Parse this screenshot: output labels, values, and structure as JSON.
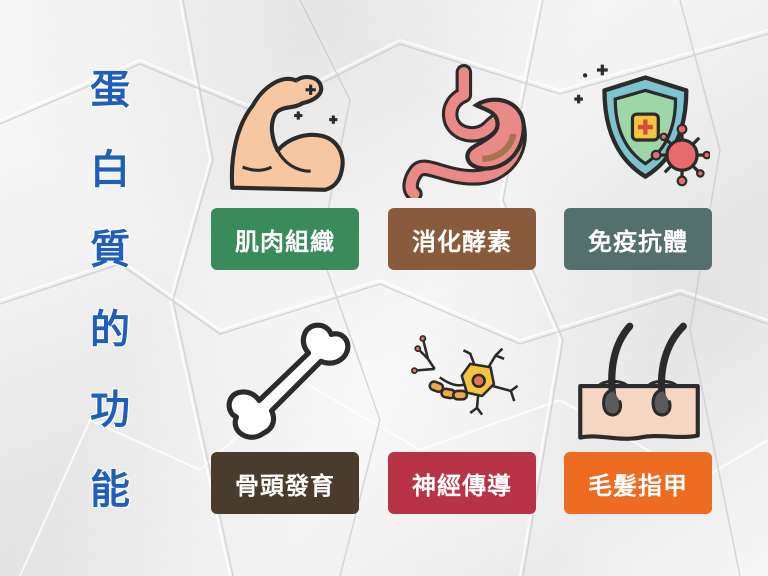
{
  "title_chars": [
    "蛋",
    "白",
    "質",
    "的",
    "功",
    "能"
  ],
  "functions": [
    {
      "label": "肌肉組織",
      "icon": "flexed-arm-icon",
      "color": "#3b8b5a"
    },
    {
      "label": "消化酵素",
      "icon": "stomach-icon",
      "color": "#8a5a3c"
    },
    {
      "label": "免疫抗體",
      "icon": "immunity-shield-icon",
      "color": "#53706d"
    },
    {
      "label": "骨頭發育",
      "icon": "bone-icon",
      "color": "#4a3c2c"
    },
    {
      "label": "神經傳導",
      "icon": "neuron-icon",
      "color": "#b93347"
    },
    {
      "label": "毛髮指甲",
      "icon": "hair-follicle-icon",
      "color": "#ee6b22"
    }
  ]
}
